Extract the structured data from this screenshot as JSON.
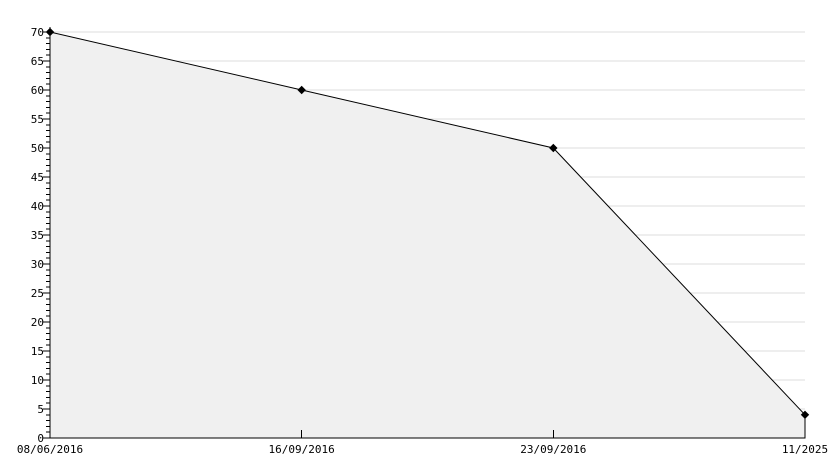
{
  "chart_data": {
    "type": "area",
    "title": "",
    "xlabel": "",
    "ylabel": "",
    "categories": [
      "08/06/2016",
      "16/09/2016",
      "23/09/2016",
      "11/2025"
    ],
    "values": [
      70,
      60,
      50,
      4
    ],
    "y_tick_labels": [
      "0",
      "5",
      "10",
      "15",
      "20",
      "25",
      "30",
      "35",
      "40",
      "45",
      "50",
      "55",
      "60",
      "65",
      "70"
    ],
    "ylim": [
      0,
      70
    ],
    "y_major_tick_step": 5,
    "y_minor_tick_step": 1,
    "grid": "horizontal-major",
    "legend": null,
    "marker": "diamond",
    "colors": {
      "background": "#ffffff",
      "area_fill": "#f0f0f0",
      "line": "#000000",
      "marker": "#000000",
      "axis": "#000000",
      "gridline": "#dedede",
      "tick_label": "#000000"
    }
  }
}
